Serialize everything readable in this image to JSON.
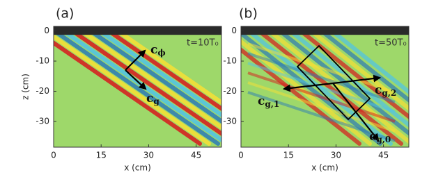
{
  "chart_data": [
    {
      "type": "field",
      "panel_label": "(a)",
      "annotation": "t=10T₀",
      "xlabel": "x (cm)",
      "ylabel": "z (cm)",
      "xlim": [
        0,
        53
      ],
      "ylim": [
        -38.5,
        1.5
      ],
      "xticks": [
        0,
        15,
        30,
        45
      ],
      "yticks": [
        0,
        -10,
        -20,
        -30
      ],
      "vector_labels": [
        {
          "base": "c",
          "sub": "ϕ"
        },
        {
          "base": "c",
          "sub": "g"
        }
      ]
    },
    {
      "type": "field",
      "panel_label": "(b)",
      "annotation": "t=50T₀",
      "xlabel": "x (cm)",
      "xlim": [
        0,
        53
      ],
      "ylim": [
        -38.5,
        1.5
      ],
      "xticks": [
        0,
        15,
        30,
        45
      ],
      "yticks": [
        0,
        -10,
        -20,
        -30
      ],
      "vector_labels": [
        {
          "base": "c",
          "sub": "g,1"
        },
        {
          "base": "c",
          "sub": "g,2"
        },
        {
          "base": "c",
          "sub": "g,0"
        }
      ]
    }
  ]
}
